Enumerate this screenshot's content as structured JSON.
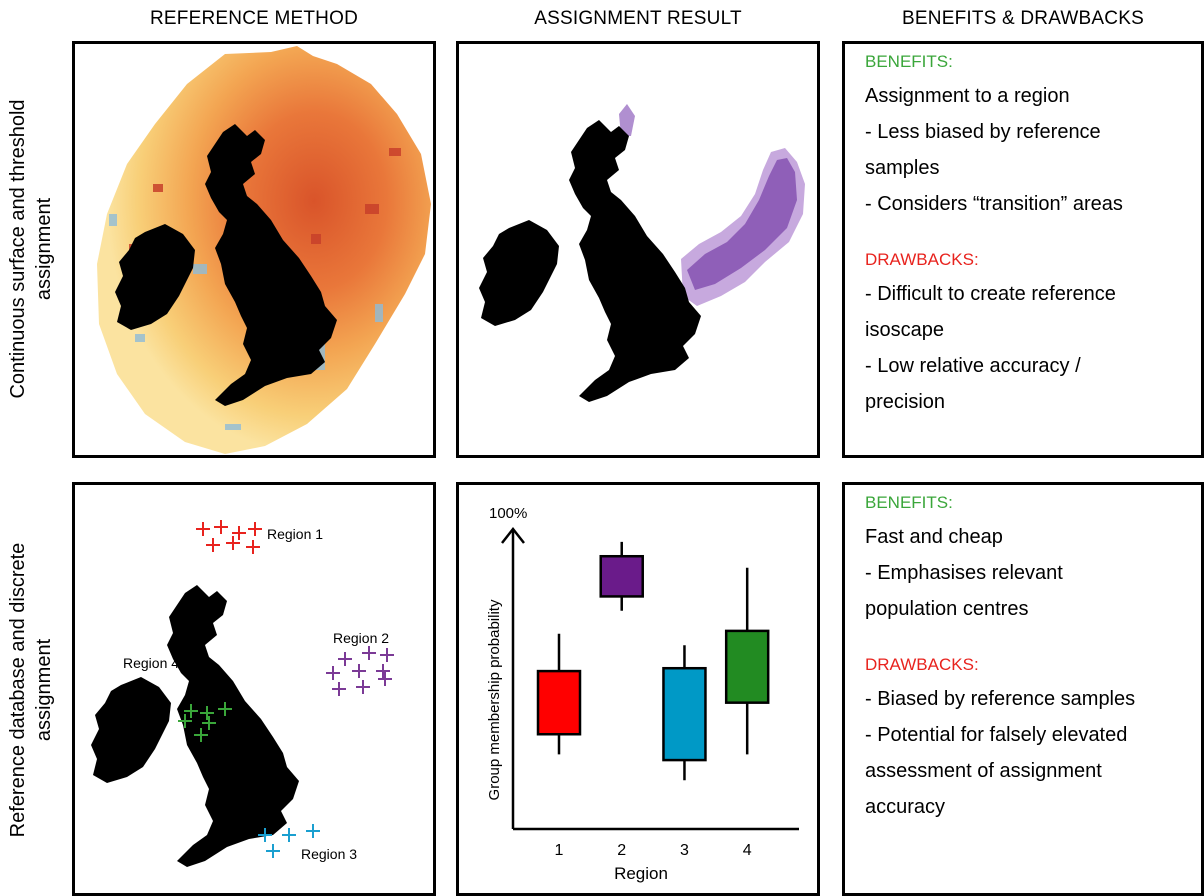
{
  "columns": {
    "reference": "REFERENCE METHOD",
    "result": "ASSIGNMENT RESULT",
    "benefits": "BENEFITS & DRAWBACKS"
  },
  "rows": {
    "top": [
      "Continuous surface and threshold",
      "assignment"
    ],
    "bottom": [
      "Reference database and discrete",
      "assignment"
    ]
  },
  "top_panel_text": {
    "benefits_title": "BENEFITS:",
    "benefits": [
      " Assignment to a region",
      "- Less biased by reference",
      "samples",
      "- Considers “transition” areas"
    ],
    "drawbacks_title": "DRAWBACKS:",
    "drawbacks": [
      "- Difficult to create reference",
      "isoscape",
      "- Low relative accuracy /",
      "precision"
    ]
  },
  "bottom_panel_text": {
    "benefits_title": "BENEFITS:",
    "benefits": [
      " Fast and cheap",
      "- Emphasises relevant",
      "population centres"
    ],
    "drawbacks_title": "DRAWBACKS:",
    "drawbacks": [
      "- Biased by reference samples",
      "- Potential for falsely elevated",
      "assessment of assignment",
      "accuracy"
    ]
  },
  "region_map": {
    "labels": [
      "Region 1",
      "Region 2",
      "Region 3",
      "Region 4"
    ],
    "colors": [
      "#e8231e",
      "#7b3a96",
      "#1a9fd0",
      "#3aa63a"
    ]
  },
  "chart_data": {
    "type": "box",
    "title": "",
    "ylabel": "Group membership probability",
    "xlabel": "Region",
    "ymax_label": "100%",
    "categories": [
      "1",
      "2",
      "3",
      "4"
    ],
    "colors": [
      "#ff0000",
      "#6a1b8a",
      "#0099c6",
      "#228b22"
    ],
    "boxes": [
      {
        "whisker_low": 0.26,
        "q1": 0.33,
        "q3": 0.55,
        "whisker_high": 0.68
      },
      {
        "whisker_low": 0.76,
        "q1": 0.81,
        "q3": 0.95,
        "whisker_high": 1.0
      },
      {
        "whisker_low": 0.17,
        "q1": 0.24,
        "q3": 0.56,
        "whisker_high": 0.64
      },
      {
        "whisker_low": 0.26,
        "q1": 0.44,
        "q3": 0.69,
        "whisker_high": 0.91
      }
    ]
  }
}
